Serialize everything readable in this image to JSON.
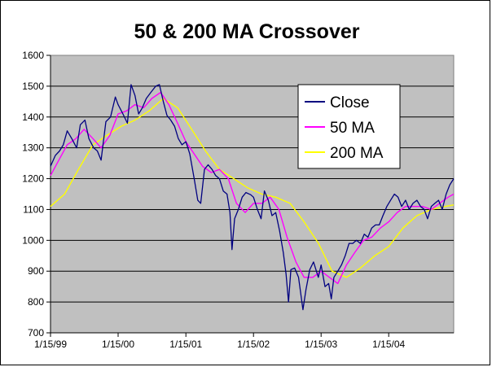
{
  "chart_data": {
    "type": "line",
    "title": "50 & 200 MA Crossover",
    "xlabel": "",
    "ylabel": "",
    "x_ticks": [
      "1/15/99",
      "1/15/00",
      "1/15/01",
      "1/15/02",
      "1/15/03",
      "1/15/04"
    ],
    "x_range": [
      "1999-01-15",
      "2004-12-31"
    ],
    "ylim": [
      700,
      1600
    ],
    "y_ticks": [
      700,
      800,
      900,
      1000,
      1100,
      1200,
      1300,
      1400,
      1500,
      1600
    ],
    "grid": "horizontal",
    "legend_position": "upper-right",
    "plot_background": "#c0c0c0",
    "series": [
      {
        "name": "Close",
        "color": "#000080",
        "x": [
          "1999-01-15",
          "1999-02-10",
          "1999-03-05",
          "1999-03-25",
          "1999-04-15",
          "1999-05-10",
          "1999-06-05",
          "1999-06-25",
          "1999-07-20",
          "1999-08-10",
          "1999-09-05",
          "1999-09-25",
          "1999-10-15",
          "1999-11-10",
          "1999-12-05",
          "1999-12-31",
          "2000-01-15",
          "2000-02-10",
          "2000-03-05",
          "2000-03-25",
          "2000-04-15",
          "2000-05-05",
          "2000-05-25",
          "2000-06-15",
          "2000-07-10",
          "2000-08-05",
          "2000-08-25",
          "2000-09-15",
          "2000-10-05",
          "2000-10-25",
          "2000-11-15",
          "2000-12-05",
          "2000-12-25",
          "2001-01-15",
          "2001-02-05",
          "2001-03-01",
          "2001-03-20",
          "2001-04-05",
          "2001-04-25",
          "2001-05-15",
          "2001-06-05",
          "2001-06-25",
          "2001-07-15",
          "2001-08-05",
          "2001-08-25",
          "2001-09-10",
          "2001-09-21",
          "2001-10-05",
          "2001-10-25",
          "2001-11-15",
          "2001-12-05",
          "2001-12-31",
          "2002-01-15",
          "2002-02-05",
          "2002-02-25",
          "2002-03-15",
          "2002-04-05",
          "2002-04-25",
          "2002-05-15",
          "2002-06-05",
          "2002-06-25",
          "2002-07-10",
          "2002-07-23",
          "2002-08-05",
          "2002-08-25",
          "2002-09-15",
          "2002-10-09",
          "2002-10-25",
          "2002-11-15",
          "2002-12-05",
          "2002-12-31",
          "2003-01-15",
          "2003-02-05",
          "2003-02-25",
          "2003-03-11",
          "2003-03-25",
          "2003-04-15",
          "2003-05-05",
          "2003-05-25",
          "2003-06-15",
          "2003-07-05",
          "2003-07-25",
          "2003-08-15",
          "2003-09-05",
          "2003-09-25",
          "2003-10-15",
          "2003-11-05",
          "2003-11-25",
          "2003-12-15",
          "2004-01-05",
          "2004-01-25",
          "2004-02-15",
          "2004-03-05",
          "2004-03-25",
          "2004-04-15",
          "2004-05-05",
          "2004-05-25",
          "2004-06-15",
          "2004-07-05",
          "2004-07-25",
          "2004-08-12",
          "2004-09-01",
          "2004-09-20",
          "2004-10-10",
          "2004-10-30",
          "2004-11-20",
          "2004-12-10",
          "2004-12-31"
        ],
        "y": [
          1240,
          1275,
          1290,
          1310,
          1355,
          1330,
          1300,
          1375,
          1390,
          1330,
          1300,
          1290,
          1260,
          1385,
          1400,
          1465,
          1440,
          1410,
          1380,
          1505,
          1470,
          1410,
          1430,
          1460,
          1480,
          1500,
          1505,
          1450,
          1405,
          1390,
          1370,
          1330,
          1310,
          1320,
          1280,
          1200,
          1130,
          1120,
          1230,
          1245,
          1230,
          1210,
          1200,
          1160,
          1150,
          1090,
          970,
          1070,
          1100,
          1140,
          1155,
          1148,
          1140,
          1100,
          1070,
          1160,
          1130,
          1080,
          1090,
          1030,
          960,
          890,
          800,
          905,
          910,
          880,
          775,
          840,
          905,
          930,
          880,
          920,
          850,
          860,
          810,
          880,
          900,
          920,
          950,
          990,
          990,
          1000,
          990,
          1020,
          1010,
          1040,
          1050,
          1050,
          1080,
          1110,
          1130,
          1150,
          1140,
          1110,
          1130,
          1100,
          1120,
          1130,
          1110,
          1100,
          1070,
          1110,
          1120,
          1130,
          1100,
          1150,
          1180,
          1200
        ]
      },
      {
        "name": "50 MA",
        "color": "#ff00ff",
        "x": [
          "1999-01-15",
          "1999-03-01",
          "1999-04-15",
          "1999-06-01",
          "1999-07-15",
          "1999-09-01",
          "1999-10-15",
          "1999-12-01",
          "2000-01-15",
          "2000-03-01",
          "2000-04-15",
          "2000-06-01",
          "2000-07-15",
          "2000-09-01",
          "2000-10-15",
          "2000-12-01",
          "2001-01-15",
          "2001-03-01",
          "2001-04-15",
          "2001-06-01",
          "2001-07-15",
          "2001-09-01",
          "2001-10-15",
          "2001-12-01",
          "2002-01-15",
          "2002-03-01",
          "2002-04-15",
          "2002-06-01",
          "2002-07-15",
          "2002-09-01",
          "2002-10-15",
          "2002-12-01",
          "2003-01-15",
          "2003-03-01",
          "2003-04-15",
          "2003-06-01",
          "2003-07-15",
          "2003-09-01",
          "2003-10-15",
          "2003-12-01",
          "2004-01-15",
          "2004-03-01",
          "2004-04-15",
          "2004-06-01",
          "2004-07-15",
          "2004-09-01",
          "2004-10-15",
          "2004-12-01",
          "2004-12-31"
        ],
        "y": [
          1210,
          1260,
          1310,
          1330,
          1360,
          1330,
          1300,
          1340,
          1410,
          1420,
          1440,
          1430,
          1460,
          1480,
          1440,
          1380,
          1320,
          1280,
          1240,
          1220,
          1230,
          1200,
          1120,
          1090,
          1120,
          1120,
          1140,
          1100,
          1010,
          930,
          880,
          880,
          900,
          880,
          860,
          920,
          960,
          1000,
          1010,
          1040,
          1060,
          1090,
          1110,
          1110,
          1110,
          1100,
          1120,
          1140,
          1150
        ]
      },
      {
        "name": "200 MA",
        "color": "#ffff00",
        "x": [
          "1999-01-15",
          "1999-04-01",
          "1999-06-15",
          "1999-09-01",
          "1999-11-15",
          "2000-02-01",
          "2000-04-15",
          "2000-07-01",
          "2000-09-15",
          "2000-12-01",
          "2001-02-15",
          "2001-05-01",
          "2001-07-15",
          "2001-10-01",
          "2001-12-15",
          "2002-03-01",
          "2002-05-15",
          "2002-08-01",
          "2002-10-15",
          "2003-01-01",
          "2003-03-15",
          "2003-06-01",
          "2003-08-15",
          "2003-11-01",
          "2004-01-15",
          "2004-04-01",
          "2004-06-15",
          "2004-09-01",
          "2004-11-15",
          "2004-12-31"
        ],
        "y": [
          1110,
          1150,
          1230,
          1310,
          1340,
          1370,
          1390,
          1420,
          1460,
          1430,
          1360,
          1290,
          1230,
          1200,
          1170,
          1150,
          1140,
          1120,
          1060,
          990,
          900,
          880,
          910,
          950,
          980,
          1040,
          1080,
          1100,
          1110,
          1115
        ]
      }
    ]
  }
}
